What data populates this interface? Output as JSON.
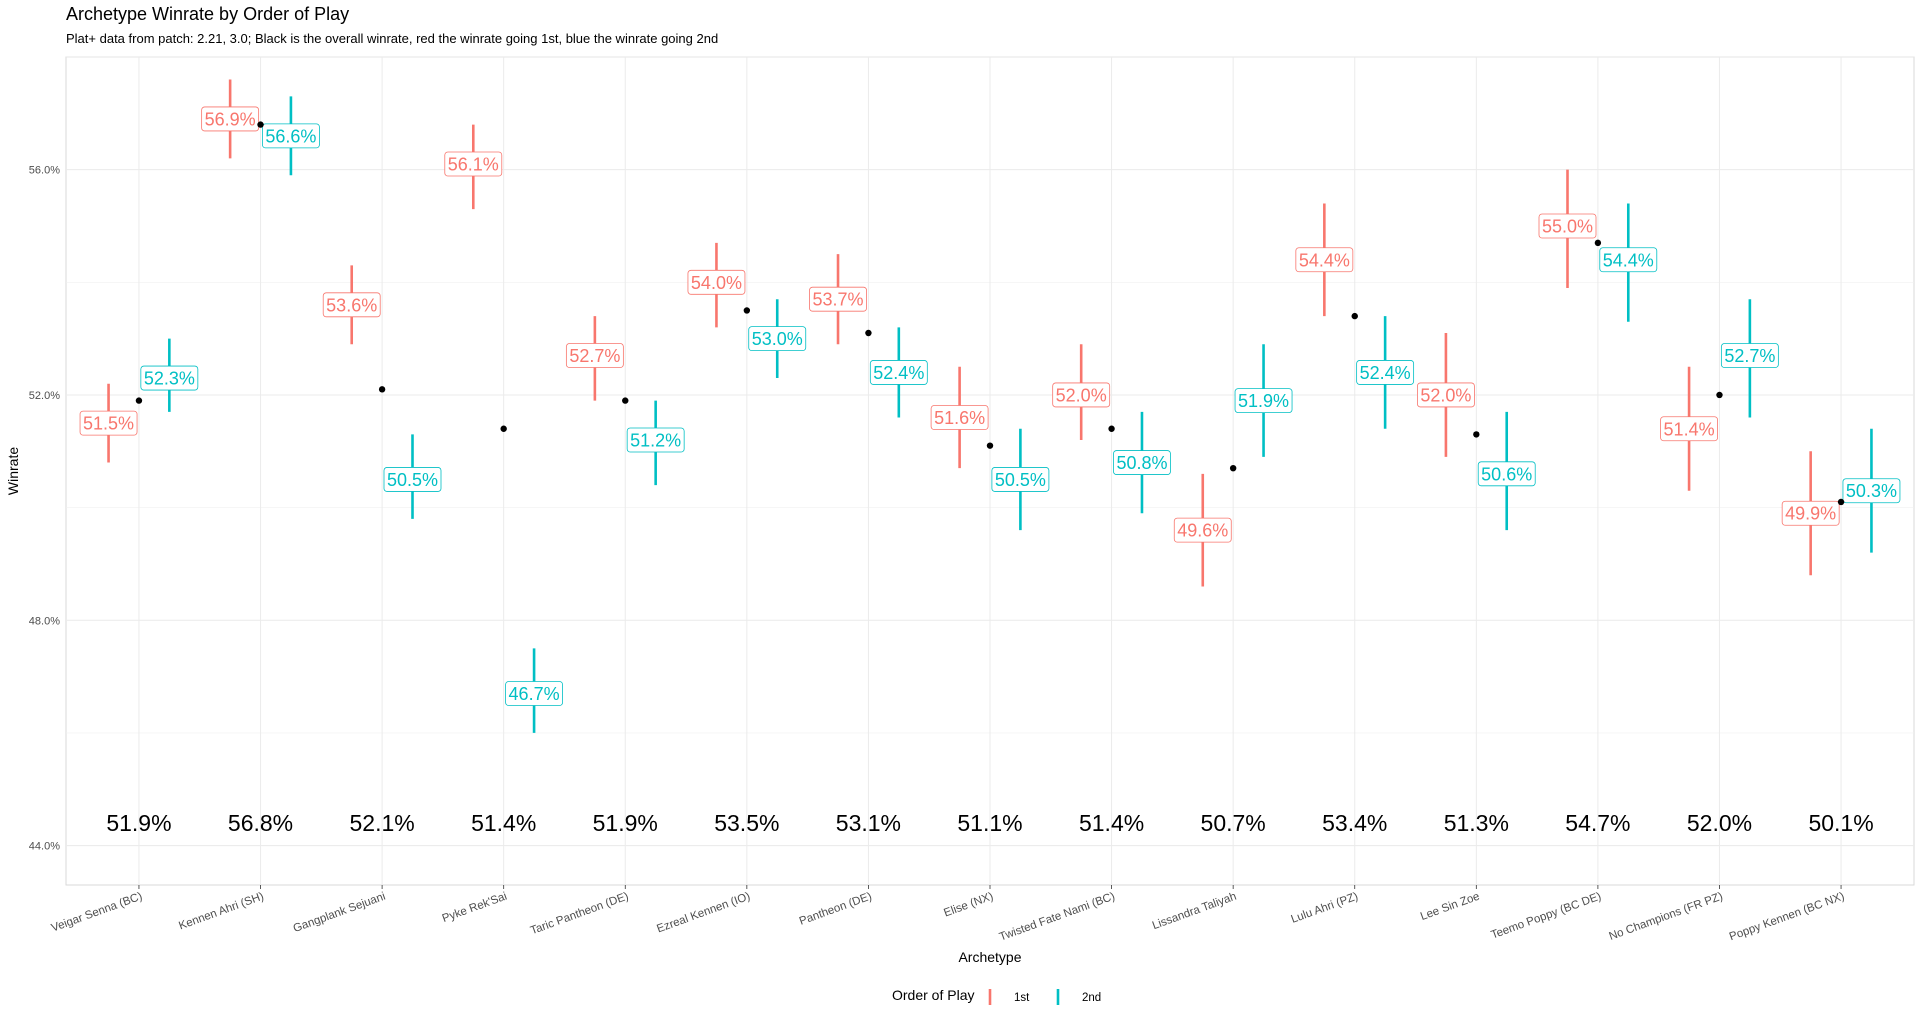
{
  "chart_data": {
    "type": "errorbar",
    "title": "Archetype Winrate by Order of Play",
    "subtitle": "Plat+ data from patch: 2.21, 3.0; Black is the overall winrate, red the winrate going 1st, blue the winrate going 2nd",
    "xlabel": "Archetype",
    "ylabel": "Winrate",
    "ylim": [
      43.3,
      58.0
    ],
    "yticks": [
      44,
      48,
      52,
      56
    ],
    "ytick_labels": [
      "44.0%",
      "48.0%",
      "52.0%",
      "56.0%"
    ],
    "grid": true,
    "legend": {
      "title": "Order of Play",
      "position": "bottom",
      "items": [
        {
          "label": "1st",
          "color": "#F8766D"
        },
        {
          "label": "2nd",
          "color": "#00BFC4"
        }
      ]
    },
    "colors": {
      "first": "#F8766D",
      "second": "#00BFC4",
      "overall": "#000000"
    },
    "categories": [
      "Veigar Senna (BC)",
      "Kennen Ahri (SH)",
      "Gangplank Sejuani",
      "Pyke Rek'Sai",
      "Taric Pantheon (DE)",
      "Ezreal Kennen (IO)",
      "Pantheon (DE)",
      "Elise (NX)",
      "Twisted Fate Nami (BC)",
      "Lissandra Taliyah",
      "Lulu Ahri (PZ)",
      "Lee Sin Zoe",
      "Teemo Poppy (BC DE)",
      "No Champions (FR PZ)",
      "Poppy Kennen (BC NX)"
    ],
    "overall": [
      51.9,
      56.8,
      52.1,
      51.4,
      51.9,
      53.5,
      53.1,
      51.1,
      51.4,
      50.7,
      53.4,
      51.3,
      54.7,
      52.0,
      50.1
    ],
    "overall_labels": [
      "51.9%",
      "56.8%",
      "52.1%",
      "51.4%",
      "51.9%",
      "53.5%",
      "53.1%",
      "51.1%",
      "51.4%",
      "50.7%",
      "53.4%",
      "51.3%",
      "54.7%",
      "52.0%",
      "50.1%"
    ],
    "series": [
      {
        "name": "1st",
        "values": [
          51.5,
          56.9,
          53.6,
          56.1,
          52.7,
          54.0,
          53.7,
          51.6,
          52.0,
          49.6,
          54.4,
          52.0,
          55.0,
          51.4,
          49.9
        ],
        "labels": [
          "51.5%",
          "56.9%",
          "53.6%",
          "56.1%",
          "52.7%",
          "54.0%",
          "53.7%",
          "51.6%",
          "52.0%",
          "49.6%",
          "54.4%",
          "52.0%",
          "55.0%",
          "51.4%",
          "49.9%"
        ],
        "lower": [
          50.8,
          56.2,
          52.9,
          55.3,
          51.9,
          53.2,
          52.9,
          50.7,
          51.2,
          48.6,
          53.4,
          50.9,
          53.9,
          50.3,
          48.8
        ],
        "upper": [
          52.2,
          57.6,
          54.3,
          56.8,
          53.4,
          54.7,
          54.5,
          52.5,
          52.9,
          50.6,
          55.4,
          53.1,
          56.0,
          52.5,
          51.0
        ]
      },
      {
        "name": "2nd",
        "values": [
          52.3,
          56.6,
          50.5,
          46.7,
          51.2,
          53.0,
          52.4,
          50.5,
          50.8,
          51.9,
          52.4,
          50.6,
          54.4,
          52.7,
          50.3
        ],
        "labels": [
          "52.3%",
          "56.6%",
          "50.5%",
          "46.7%",
          "51.2%",
          "53.0%",
          "52.4%",
          "50.5%",
          "50.8%",
          "51.9%",
          "52.4%",
          "50.6%",
          "54.4%",
          "52.7%",
          "50.3%"
        ],
        "lower": [
          51.7,
          55.9,
          49.8,
          46.0,
          50.4,
          52.3,
          51.6,
          49.6,
          49.9,
          50.9,
          51.4,
          49.6,
          53.3,
          51.6,
          49.2
        ],
        "upper": [
          53.0,
          57.3,
          51.3,
          47.5,
          51.9,
          53.7,
          53.2,
          51.4,
          51.7,
          52.9,
          53.4,
          51.7,
          55.4,
          53.7,
          51.4
        ]
      }
    ]
  }
}
